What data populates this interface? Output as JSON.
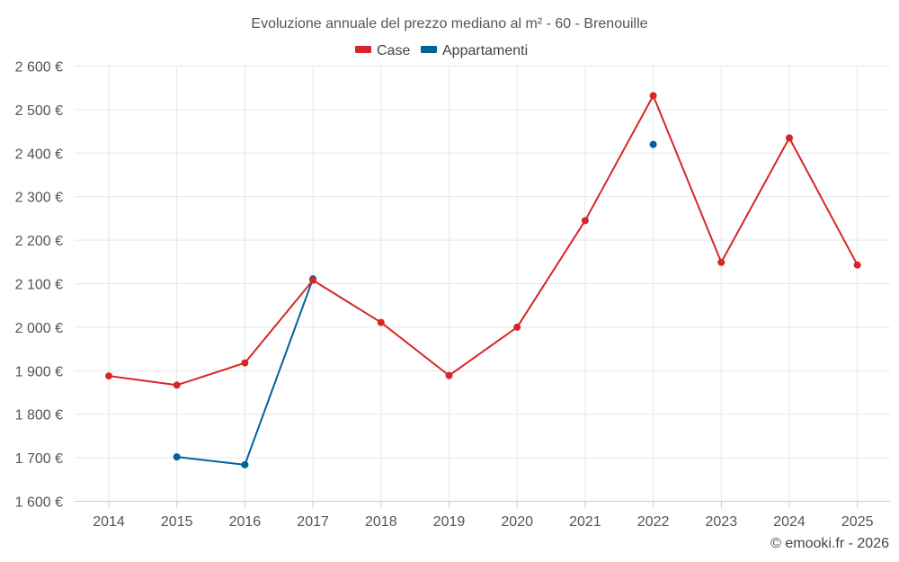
{
  "chart_data": {
    "type": "line",
    "title": "Evoluzione annuale del prezzo mediano al m² - 60 - Brenouille",
    "categories": [
      "2014",
      "2015",
      "2016",
      "2017",
      "2018",
      "2019",
      "2020",
      "2021",
      "2022",
      "2023",
      "2024",
      "2025"
    ],
    "y_tick_labels": [
      "1 600 €",
      "1 700 €",
      "1 800 €",
      "1 900 €",
      "2 000 €",
      "2 100 €",
      "2 200 €",
      "2 300 €",
      "2 400 €",
      "2 500 €",
      "2 600 €"
    ],
    "y_ticks": [
      1600,
      1700,
      1800,
      1900,
      2000,
      2100,
      2200,
      2300,
      2400,
      2500,
      2600
    ],
    "ylim": [
      1600,
      2600
    ],
    "xlabel": "",
    "ylabel": "",
    "grid": true,
    "legend_position": "top-center",
    "series": [
      {
        "name": "Case",
        "color": "#d62728",
        "values": [
          1888,
          1867,
          1918,
          2108,
          2011,
          1889,
          2000,
          2245,
          2532,
          2149,
          2435,
          2143
        ]
      },
      {
        "name": "Appartamenti",
        "color": "#00629b",
        "values": [
          null,
          1702,
          1684,
          2111,
          null,
          null,
          null,
          null,
          2420,
          null,
          null,
          null
        ]
      }
    ]
  },
  "credit": "© emooki.fr - 2026"
}
